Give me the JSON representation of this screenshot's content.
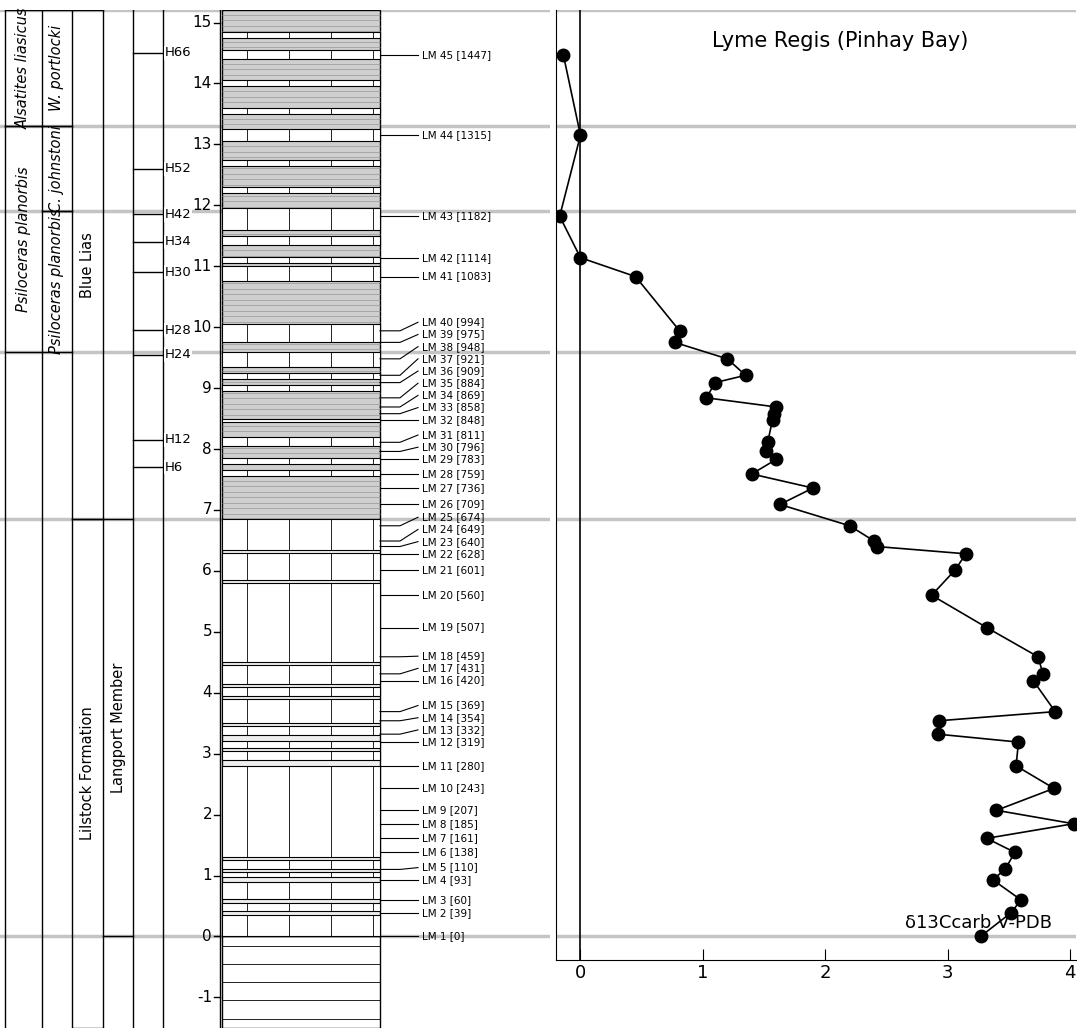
{
  "chart_data": {
    "type": "line",
    "title": "Lyme Regis (Pinhay Bay)",
    "xlabel": "δ13Ccarb V-PDB",
    "color": "#000000",
    "marker": "circle",
    "line_style": "solid",
    "tick_labels": "x",
    "xlim": [
      -0.2,
      4.05
    ],
    "xticks": [
      0,
      1,
      2,
      3,
      4
    ],
    "ylim": [
      -0.38,
      15.2
    ],
    "reference_x": 0,
    "sample_labels": [
      "LM 1 [0]",
      "LM 2 [39]",
      "LM 3 [60]",
      "LM 4 [93]",
      "LM 5 [110]",
      "LM 6 [138]",
      "LM 7 [161]",
      "LM 8 [185]",
      "LM 9 [207]",
      "LM 10 [243]",
      "LM 11 [280]",
      "LM 12 [319]",
      "LM 13 [332]",
      "LM 14 [354]",
      "LM 15 [369]",
      "LM 16 [420]",
      "LM 17 [431]",
      "LM 18 [459]",
      "LM 19 [507]",
      "LM 20 [560]",
      "LM 21 [601]",
      "LM 22 [628]",
      "LM 23 [640]",
      "LM 24 [649]",
      "LM 25 [674]",
      "LM 26 [709]",
      "LM 27 [736]",
      "LM 28 [759]",
      "LM 29 [783]",
      "LM 30 [796]",
      "LM 31 [811]",
      "LM 32 [848]",
      "LM 33 [858]",
      "LM 34 [869]",
      "LM 35 [884]",
      "LM 36 [909]",
      "LM 37 [921]",
      "LM 38 [948]",
      "LM 39 [975]",
      "LM 40 [994]",
      "LM 41 [1083]",
      "LM 42 [1114]",
      "LM 43 [1182]",
      "LM 44 [1315]",
      "LM 45 [1447]"
    ],
    "y": [
      0,
      0.39,
      0.6,
      0.93,
      1.1,
      1.38,
      1.61,
      1.85,
      2.07,
      2.43,
      2.8,
      3.19,
      3.32,
      3.54,
      3.69,
      4.2,
      4.31,
      4.59,
      5.07,
      5.6,
      6.01,
      6.28,
      6.4,
      6.49,
      6.74,
      7.09,
      7.36,
      7.59,
      7.83,
      7.96,
      8.11,
      8.48,
      8.58,
      8.69,
      8.84,
      9.09,
      9.21,
      9.48,
      9.75,
      9.94,
      10.83,
      11.14,
      11.82,
      13.15,
      14.47
    ],
    "values": [
      3.27,
      3.52,
      3.6,
      3.37,
      3.47,
      3.55,
      3.32,
      4.03,
      3.4,
      3.87,
      3.56,
      3.58,
      2.92,
      2.93,
      3.88,
      3.7,
      3.78,
      3.74,
      3.32,
      2.87,
      3.06,
      3.15,
      2.42,
      2.4,
      2.2,
      1.63,
      1.9,
      1.4,
      1.6,
      1.52,
      1.53,
      1.57,
      1.58,
      1.6,
      1.03,
      1.1,
      1.35,
      1.2,
      0.77,
      0.81,
      0.45,
      0.0,
      -0.17,
      0.0,
      -0.14
    ],
    "boundaries": [
      0,
      6.85,
      9.6,
      11.9,
      13.3,
      15.2
    ]
  },
  "column": {
    "ylim": [
      -1.5,
      15.2
    ],
    "yticks": [
      -1,
      0,
      1,
      2,
      3,
      4,
      5,
      6,
      7,
      8,
      9,
      10,
      11,
      12,
      13,
      14,
      15
    ],
    "zones": [
      {
        "name": "Alsatites liasicus",
        "column": 0,
        "base": 13.3,
        "top": 15.2
      },
      {
        "name": "Psiloceras planorbis",
        "column": 0,
        "base": 9.6,
        "top": 13.3
      },
      {
        "name": "W. portlocki",
        "column": 1,
        "base": 13.3,
        "top": 15.2
      },
      {
        "name": "C. johnstoni",
        "column": 1,
        "base": 11.9,
        "top": 13.3
      },
      {
        "name": "Psiloceras planorbis",
        "column": 1,
        "base": 9.6,
        "top": 11.9
      },
      {
        "name": "Blue Lias",
        "column": 2,
        "base": 6.85,
        "top": 15.2
      },
      {
        "name": "Lilstock Formation",
        "column": 2,
        "base": -1.5,
        "top": 6.85
      },
      {
        "name": "Langport Member",
        "column": 3,
        "base": 0,
        "top": 6.85
      }
    ],
    "beds": [
      {
        "name": "H6",
        "height": 7.7
      },
      {
        "name": "H12",
        "height": 8.15
      },
      {
        "name": "H24",
        "height": 9.55
      },
      {
        "name": "H28",
        "height": 9.95
      },
      {
        "name": "H30",
        "height": 10.9
      },
      {
        "name": "H34",
        "height": 11.4
      },
      {
        "name": "H42",
        "height": 11.85
      },
      {
        "name": "H52",
        "height": 12.6
      },
      {
        "name": "H66",
        "height": 14.5
      }
    ],
    "limestone_beds": [
      [
        0,
        0.35
      ],
      [
        0.42,
        0.55
      ],
      [
        0.62,
        0.9
      ],
      [
        0.97,
        1.05
      ],
      [
        1.1,
        1.25
      ],
      [
        1.3,
        2.8
      ],
      [
        2.9,
        3.05
      ],
      [
        3.1,
        3.2
      ],
      [
        3.3,
        3.45
      ],
      [
        3.5,
        3.9
      ],
      [
        3.95,
        4.1
      ],
      [
        4.15,
        4.45
      ],
      [
        4.5,
        5.8
      ],
      [
        5.85,
        6.3
      ],
      [
        6.35,
        6.85
      ],
      [
        7.55,
        7.65
      ],
      [
        7.75,
        7.85
      ],
      [
        8.05,
        8.2
      ],
      [
        8.45,
        8.5
      ],
      [
        8.95,
        9.05
      ],
      [
        9.15,
        9.25
      ],
      [
        9.35,
        9.6
      ],
      [
        9.75,
        10.05
      ],
      [
        10.75,
        11.0
      ],
      [
        11.05,
        11.15
      ],
      [
        11.35,
        11.5
      ],
      [
        11.6,
        11.95
      ],
      [
        12.2,
        12.3
      ],
      [
        12.65,
        12.75
      ],
      [
        13.05,
        13.25
      ],
      [
        13.5,
        13.6
      ],
      [
        13.95,
        14.05
      ],
      [
        14.4,
        14.55
      ],
      [
        14.75,
        14.85
      ]
    ]
  }
}
